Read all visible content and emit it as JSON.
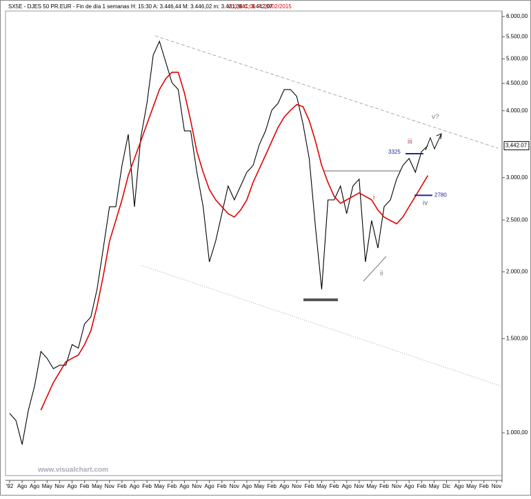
{
  "chart_data": {
    "type": "line",
    "title": "SX5E - DJES 50 PR.EUR - Fin de día 1 semanas H: 15:30 A: 3.446,44 M: 3.446,02 m: 3.431,36 C: 3.442,07",
    "subtitle": "V: 0,941,06 P: 20/02/2015",
    "watermark": "www.visualchart.com",
    "log_scale": true,
    "categories": [
      "'92",
      null,
      "Ago",
      null,
      "Ago",
      null,
      "May",
      null,
      "Nov",
      null,
      "Ago",
      null,
      "Feb",
      null,
      "May",
      null,
      "Nov",
      null,
      "Feb",
      null,
      "Ago",
      null,
      "Feb",
      null,
      "May",
      null,
      "Feb",
      null,
      "Ago",
      null,
      "Nov",
      null,
      "Ago",
      null,
      "Feb",
      null,
      "Nov",
      null,
      "Ago",
      null,
      "May",
      null,
      "Feb",
      null,
      "Ago",
      null,
      "Nov",
      null,
      "Feb",
      null,
      "May",
      null,
      "Feb",
      null,
      "Ago",
      null,
      "Nov",
      null,
      "May",
      null,
      "Feb",
      null,
      "Nov",
      null,
      "Ago",
      null,
      "Feb",
      null,
      "May",
      null,
      "Dic",
      null,
      "Ago",
      null,
      "May",
      null,
      "Feb",
      null,
      "Nov",
      null
    ],
    "series": [
      {
        "name": "SX5E",
        "color": "#000000",
        "values": [
          1087,
          1055,
          951,
          1103,
          1224,
          1419,
          1378,
          1318,
          1338,
          1338,
          1462,
          1440,
          1598,
          1646,
          1854,
          2215,
          2647,
          2647,
          3162,
          3614,
          2647,
          3561,
          4130,
          5084,
          5395,
          4935,
          4515,
          4383,
          3668,
          3668,
          3070,
          2647,
          2087,
          2282,
          2569,
          2893,
          2726,
          2893,
          3070,
          3162,
          3457,
          3668,
          4010,
          4130,
          4383,
          4383,
          4255,
          3779,
          3258,
          2421,
          1854,
          2726,
          2726,
          2893,
          2569,
          2893,
          2980,
          2087,
          2494,
          2215,
          2647,
          2726,
          2980,
          3162,
          3258,
          3070,
          3356,
          3442,
          null,
          null,
          null,
          null,
          null,
          null,
          null,
          null,
          null,
          null,
          null,
          null
        ]
      },
      {
        "name": "MA",
        "color": "#e00000",
        "values": [
          null,
          null,
          null,
          null,
          null,
          1103,
          1170,
          1242,
          1298,
          1358,
          1378,
          1398,
          1462,
          1551,
          1722,
          1967,
          2282,
          2494,
          2726,
          3027,
          3258,
          3508,
          3779,
          4071,
          4383,
          4589,
          4722,
          4722,
          4321,
          3834,
          3356,
          3070,
          2850,
          2726,
          2647,
          2569,
          2532,
          2609,
          2726,
          2938,
          3116,
          3306,
          3508,
          3723,
          3895,
          4010,
          4109,
          4071,
          3834,
          3508,
          3162,
          2938,
          2767,
          2686,
          2726,
          2767,
          2809,
          2767,
          2726,
          2609,
          2532,
          2494,
          2459,
          2532,
          2647,
          2767,
          2893,
          3027,
          null,
          null,
          null,
          null,
          null,
          null,
          null,
          null,
          null,
          null,
          null,
          null
        ]
      }
    ],
    "ylim": [
      832,
      6145
    ],
    "yticks": [
      {
        "value": 1000,
        "label": "1.000,00"
      },
      {
        "value": 1500,
        "label": "1.500,00"
      },
      {
        "value": 2000,
        "label": "2.000,00"
      },
      {
        "value": 2500,
        "label": "2.500,00"
      },
      {
        "value": 3000,
        "label": "3.000,00"
      },
      {
        "value": 4000,
        "label": "4.000,00"
      },
      {
        "value": 4500,
        "label": "4.500,00"
      },
      {
        "value": 5000,
        "label": "5.000,00"
      },
      {
        "value": 5500,
        "label": "5.500,00"
      },
      {
        "value": 6000,
        "label": "6.000,00"
      }
    ],
    "last_price": {
      "value": 3442.07,
      "label": "3,442.07"
    },
    "levels": [
      {
        "value": 3325,
        "label": "3325",
        "color": "#1a2a8a"
      },
      {
        "value": 2780,
        "label": "2780",
        "color": "#1a2a8a"
      }
    ],
    "annotations": [
      {
        "text": "iii",
        "color": "#b05050"
      },
      {
        "text": "iv",
        "color": "#607080"
      },
      {
        "text": "v?",
        "color": "#808080"
      },
      {
        "text": "i",
        "color": "#c04040"
      },
      {
        "text": "ii",
        "color": "#808080"
      }
    ]
  }
}
